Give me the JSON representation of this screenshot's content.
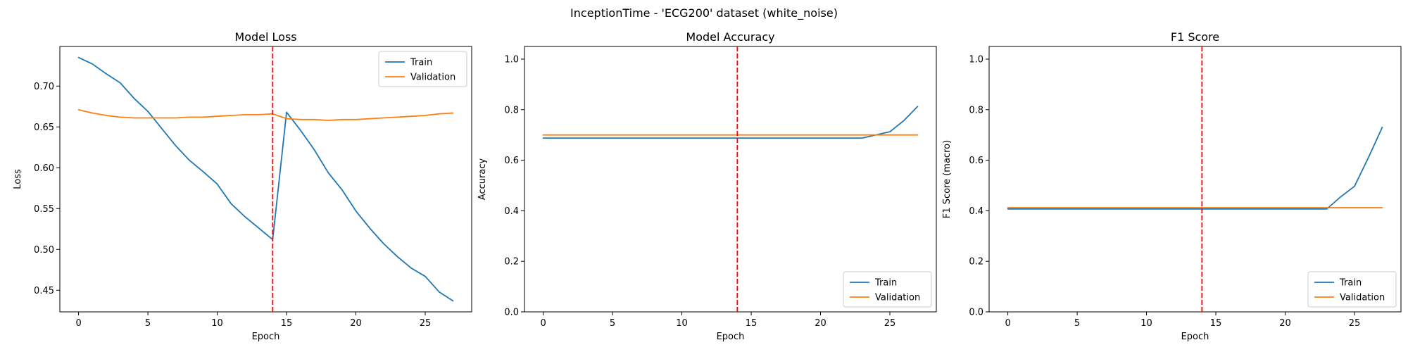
{
  "suptitle": "InceptionTime - 'ECG200' dataset (white_noise)",
  "chart_data": [
    {
      "type": "line",
      "title": "Model Loss",
      "xlabel": "Epoch",
      "ylabel": "Loss",
      "xlim": [
        -1.35,
        28.35
      ],
      "ylim": [
        0.4235,
        0.7485
      ],
      "xticks": [
        0,
        5,
        10,
        15,
        20,
        25
      ],
      "yticks": [
        0.45,
        0.5,
        0.55,
        0.6,
        0.65,
        0.7
      ],
      "xtick_labels": [
        "0",
        "5",
        "10",
        "15",
        "20",
        "25"
      ],
      "ytick_labels": [
        "0.45",
        "0.50",
        "0.55",
        "0.60",
        "0.65",
        "0.70"
      ],
      "legend_loc": "upper right",
      "vline": 14,
      "x": [
        0,
        1,
        2,
        3,
        4,
        5,
        6,
        7,
        8,
        9,
        10,
        11,
        12,
        13,
        14,
        15,
        16,
        17,
        18,
        19,
        20,
        21,
        22,
        23,
        24,
        25,
        26,
        27
      ],
      "series": [
        {
          "name": "Train",
          "color": "#1f77b4",
          "values": [
            0.735,
            0.727,
            0.715,
            0.704,
            0.685,
            0.669,
            0.648,
            0.627,
            0.609,
            0.595,
            0.58,
            0.556,
            0.54,
            0.526,
            0.512,
            0.668,
            0.646,
            0.622,
            0.594,
            0.573,
            0.547,
            0.526,
            0.507,
            0.491,
            0.477,
            0.467,
            0.448,
            0.437
          ]
        },
        {
          "name": "Validation",
          "color": "#ff7f0e",
          "values": [
            0.671,
            0.667,
            0.664,
            0.662,
            0.661,
            0.661,
            0.661,
            0.661,
            0.662,
            0.662,
            0.663,
            0.664,
            0.665,
            0.665,
            0.666,
            0.66,
            0.659,
            0.659,
            0.658,
            0.659,
            0.659,
            0.66,
            0.661,
            0.662,
            0.663,
            0.664,
            0.666,
            0.667
          ]
        }
      ]
    },
    {
      "type": "line",
      "title": "Model Accuracy",
      "xlabel": "Epoch",
      "ylabel": "Accuracy",
      "xlim": [
        -1.35,
        28.35
      ],
      "ylim": [
        0.0,
        1.05
      ],
      "xticks": [
        0,
        5,
        10,
        15,
        20,
        25
      ],
      "yticks": [
        0.0,
        0.2,
        0.4,
        0.6,
        0.8,
        1.0
      ],
      "xtick_labels": [
        "0",
        "5",
        "10",
        "15",
        "20",
        "25"
      ],
      "ytick_labels": [
        "0.0",
        "0.2",
        "0.4",
        "0.6",
        "0.8",
        "1.0"
      ],
      "legend_loc": "lower right",
      "vline": 14,
      "x": [
        0,
        1,
        2,
        3,
        4,
        5,
        6,
        7,
        8,
        9,
        10,
        11,
        12,
        13,
        14,
        15,
        16,
        17,
        18,
        19,
        20,
        21,
        22,
        23,
        24,
        25,
        26,
        27
      ],
      "series": [
        {
          "name": "Train",
          "color": "#1f77b4",
          "values": [
            0.6875,
            0.6875,
            0.6875,
            0.6875,
            0.6875,
            0.6875,
            0.6875,
            0.6875,
            0.6875,
            0.6875,
            0.6875,
            0.6875,
            0.6875,
            0.6875,
            0.6875,
            0.6875,
            0.6875,
            0.6875,
            0.6875,
            0.6875,
            0.6875,
            0.6875,
            0.6875,
            0.6875,
            0.7,
            0.7125,
            0.7563,
            0.8125
          ]
        },
        {
          "name": "Validation",
          "color": "#ff7f0e",
          "values": [
            0.7,
            0.7,
            0.7,
            0.7,
            0.7,
            0.7,
            0.7,
            0.7,
            0.7,
            0.7,
            0.7,
            0.7,
            0.7,
            0.7,
            0.7,
            0.7,
            0.7,
            0.7,
            0.7,
            0.7,
            0.7,
            0.7,
            0.7,
            0.7,
            0.7,
            0.7,
            0.7,
            0.7
          ]
        }
      ]
    },
    {
      "type": "line",
      "title": "F1 Score",
      "xlabel": "Epoch",
      "ylabel": "F1 Score (macro)",
      "xlim": [
        -1.35,
        28.35
      ],
      "ylim": [
        0.0,
        1.05
      ],
      "xticks": [
        0,
        5,
        10,
        15,
        20,
        25
      ],
      "yticks": [
        0.0,
        0.2,
        0.4,
        0.6,
        0.8,
        1.0
      ],
      "xtick_labels": [
        "0",
        "5",
        "10",
        "15",
        "20",
        "25"
      ],
      "ytick_labels": [
        "0.0",
        "0.2",
        "0.4",
        "0.6",
        "0.8",
        "1.0"
      ],
      "legend_loc": "lower right",
      "vline": 14,
      "x": [
        0,
        1,
        2,
        3,
        4,
        5,
        6,
        7,
        8,
        9,
        10,
        11,
        12,
        13,
        14,
        15,
        16,
        17,
        18,
        19,
        20,
        21,
        22,
        23,
        24,
        25,
        26,
        27
      ],
      "series": [
        {
          "name": "Train",
          "color": "#1f77b4",
          "values": [
            0.407,
            0.407,
            0.407,
            0.407,
            0.407,
            0.407,
            0.407,
            0.407,
            0.407,
            0.407,
            0.407,
            0.407,
            0.407,
            0.407,
            0.407,
            0.407,
            0.407,
            0.407,
            0.407,
            0.407,
            0.407,
            0.407,
            0.407,
            0.407,
            0.455,
            0.497,
            0.61,
            0.73
          ]
        },
        {
          "name": "Validation",
          "color": "#ff7f0e",
          "values": [
            0.412,
            0.412,
            0.412,
            0.412,
            0.412,
            0.412,
            0.412,
            0.412,
            0.412,
            0.412,
            0.412,
            0.412,
            0.412,
            0.412,
            0.412,
            0.412,
            0.412,
            0.412,
            0.412,
            0.412,
            0.412,
            0.412,
            0.412,
            0.412,
            0.412,
            0.412,
            0.412,
            0.412
          ]
        }
      ]
    }
  ]
}
